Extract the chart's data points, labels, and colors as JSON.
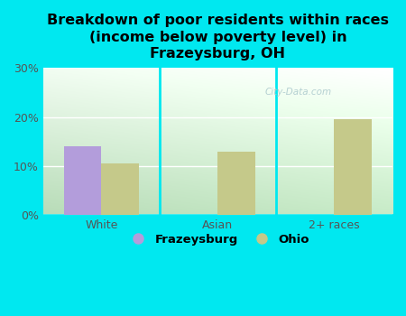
{
  "title": "Breakdown of poor residents within races\n(income below poverty level) in\nFrazeysburg, OH",
  "categories": [
    "White",
    "Asian",
    "2+ races"
  ],
  "frazeysburg_values": [
    14.0,
    0,
    0
  ],
  "ohio_values": [
    10.5,
    13.0,
    19.5
  ],
  "frazeysburg_color": "#b39ddb",
  "ohio_color": "#c5c98a",
  "background_color": "#00e8f0",
  "grad_bottom": "#b8dcb8",
  "grad_top": "#f2fdf2",
  "ylim": [
    0,
    30
  ],
  "yticks": [
    0,
    10,
    20,
    30
  ],
  "ytick_labels": [
    "0%",
    "10%",
    "20%",
    "30%"
  ],
  "bar_width": 0.32,
  "title_fontsize": 11.5,
  "tick_fontsize": 9,
  "legend_fontsize": 9.5,
  "watermark": "City-Data.com"
}
